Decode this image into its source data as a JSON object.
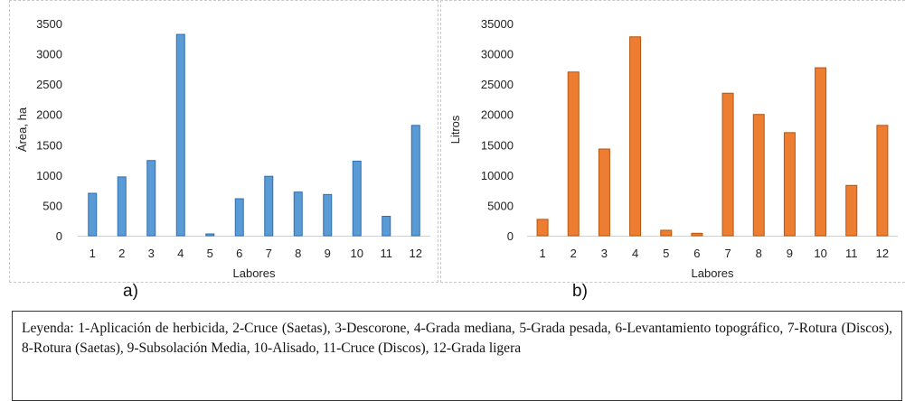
{
  "chart_data": [
    {
      "type": "bar",
      "panel_label": "a)",
      "categories": [
        "1",
        "2",
        "3",
        "4",
        "5",
        "6",
        "7",
        "8",
        "9",
        "10",
        "11",
        "12"
      ],
      "values": [
        700,
        970,
        1240,
        3320,
        30,
        610,
        980,
        720,
        680,
        1230,
        320,
        1820
      ],
      "xlabel": "Labores",
      "ylabel": "Área, ha",
      "ylim": [
        0,
        3500
      ],
      "yticks": [
        0,
        500,
        1000,
        1500,
        2000,
        2500,
        3000,
        3500
      ],
      "bar_color": "#5b9bd5",
      "bar_edge_color": "#2e6fb0",
      "grid": false
    },
    {
      "type": "bar",
      "panel_label": "b)",
      "categories": [
        "1",
        "2",
        "3",
        "4",
        "5",
        "6",
        "7",
        "8",
        "9",
        "10",
        "11",
        "12"
      ],
      "values": [
        2700,
        27000,
        14300,
        32800,
        900,
        400,
        23500,
        20000,
        17000,
        27700,
        8300,
        18200
      ],
      "xlabel": "Labores",
      "ylabel": "Litros",
      "ylim": [
        0,
        35000
      ],
      "yticks": [
        0,
        5000,
        10000,
        15000,
        20000,
        25000,
        30000,
        35000
      ],
      "bar_color": "#ed7d31",
      "bar_edge_color": "#b85610",
      "grid": false
    }
  ],
  "legend_text": "Leyenda: 1-Aplicación de herbicida, 2-Cruce (Saetas), 3-Descorone, 4-Grada mediana, 5-Grada pesada, 6-Levantamiento topográfico, 7-Rotura (Discos), 8-Rotura (Saetas), 9-Subsolación Media, 10-Alisado, 11-Cruce (Discos), 12-Grada ligera"
}
